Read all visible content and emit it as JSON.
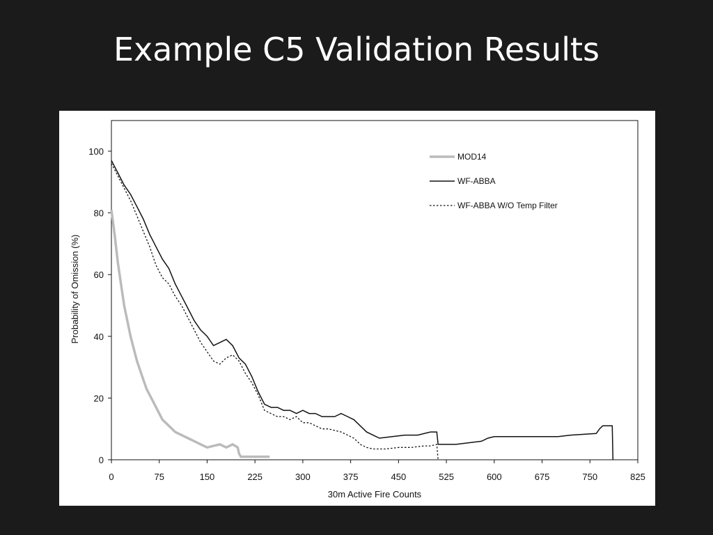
{
  "slide": {
    "title": "Example C5 Validation Results"
  },
  "chart_data": {
    "type": "line",
    "title": "",
    "xlabel": "30m Active Fire Counts",
    "ylabel": "Probability of Omission (%)",
    "xlim": [
      0,
      825
    ],
    "ylim": [
      0,
      100
    ],
    "xticks": [
      0,
      75,
      150,
      225,
      300,
      375,
      450,
      525,
      600,
      675,
      750,
      825
    ],
    "yticks": [
      0,
      20,
      40,
      60,
      80,
      100
    ],
    "grid": false,
    "legend_position": "top-right",
    "series": [
      {
        "name": "MOD14",
        "color": "#bbbbbb",
        "style": "solid-thick",
        "points": [
          [
            0,
            81
          ],
          [
            5,
            73
          ],
          [
            10,
            64
          ],
          [
            15,
            57
          ],
          [
            20,
            50
          ],
          [
            25,
            45
          ],
          [
            30,
            40
          ],
          [
            35,
            36
          ],
          [
            40,
            32
          ],
          [
            45,
            29
          ],
          [
            50,
            26
          ],
          [
            55,
            23
          ],
          [
            60,
            21
          ],
          [
            65,
            19
          ],
          [
            70,
            17
          ],
          [
            75,
            15
          ],
          [
            80,
            13
          ],
          [
            85,
            12
          ],
          [
            90,
            11
          ],
          [
            95,
            10
          ],
          [
            100,
            9
          ],
          [
            110,
            8
          ],
          [
            120,
            7
          ],
          [
            130,
            6
          ],
          [
            140,
            5
          ],
          [
            150,
            4
          ],
          [
            160,
            4.5
          ],
          [
            170,
            5
          ],
          [
            180,
            4
          ],
          [
            190,
            5
          ],
          [
            198,
            4
          ],
          [
            200,
            2
          ],
          [
            203,
            1
          ],
          [
            225,
            1
          ],
          [
            248,
            1
          ]
        ]
      },
      {
        "name": "WF-ABBA",
        "color": "#111111",
        "style": "solid",
        "points": [
          [
            0,
            97
          ],
          [
            10,
            93
          ],
          [
            20,
            89
          ],
          [
            30,
            86
          ],
          [
            40,
            82
          ],
          [
            50,
            78
          ],
          [
            60,
            73
          ],
          [
            70,
            69
          ],
          [
            80,
            65
          ],
          [
            90,
            62
          ],
          [
            100,
            57
          ],
          [
            110,
            53
          ],
          [
            120,
            49
          ],
          [
            130,
            45
          ],
          [
            140,
            42
          ],
          [
            150,
            40
          ],
          [
            160,
            37
          ],
          [
            170,
            38
          ],
          [
            180,
            39
          ],
          [
            190,
            37
          ],
          [
            200,
            33
          ],
          [
            210,
            31
          ],
          [
            220,
            27
          ],
          [
            230,
            22
          ],
          [
            240,
            18
          ],
          [
            250,
            17
          ],
          [
            260,
            17
          ],
          [
            270,
            16
          ],
          [
            280,
            16
          ],
          [
            290,
            15
          ],
          [
            300,
            16
          ],
          [
            310,
            15
          ],
          [
            320,
            15
          ],
          [
            330,
            14
          ],
          [
            340,
            14
          ],
          [
            350,
            14
          ],
          [
            360,
            15
          ],
          [
            370,
            14
          ],
          [
            380,
            13
          ],
          [
            390,
            11
          ],
          [
            400,
            9
          ],
          [
            410,
            8
          ],
          [
            420,
            7
          ],
          [
            440,
            7.5
          ],
          [
            460,
            8
          ],
          [
            480,
            8
          ],
          [
            500,
            9
          ],
          [
            510,
            9
          ],
          [
            512,
            5
          ],
          [
            540,
            5
          ],
          [
            560,
            5.5
          ],
          [
            580,
            6
          ],
          [
            590,
            7
          ],
          [
            600,
            7.5
          ],
          [
            650,
            7.5
          ],
          [
            700,
            7.5
          ],
          [
            720,
            8
          ],
          [
            760,
            8.5
          ],
          [
            765,
            10
          ],
          [
            770,
            11
          ],
          [
            785,
            11
          ],
          [
            786,
            0
          ]
        ]
      },
      {
        "name": "WF-ABBA W/O Temp Filter",
        "color": "#111111",
        "style": "dotted",
        "points": [
          [
            0,
            96
          ],
          [
            10,
            92
          ],
          [
            20,
            88
          ],
          [
            30,
            84
          ],
          [
            40,
            79
          ],
          [
            50,
            74
          ],
          [
            60,
            69
          ],
          [
            70,
            63
          ],
          [
            80,
            59
          ],
          [
            90,
            57
          ],
          [
            100,
            53
          ],
          [
            110,
            50
          ],
          [
            120,
            46
          ],
          [
            130,
            42
          ],
          [
            140,
            38
          ],
          [
            150,
            35
          ],
          [
            160,
            32
          ],
          [
            170,
            31
          ],
          [
            180,
            33
          ],
          [
            190,
            34
          ],
          [
            200,
            32
          ],
          [
            210,
            28
          ],
          [
            220,
            25
          ],
          [
            230,
            21
          ],
          [
            240,
            16
          ],
          [
            250,
            15
          ],
          [
            260,
            14
          ],
          [
            270,
            14
          ],
          [
            280,
            13
          ],
          [
            290,
            14
          ],
          [
            300,
            12
          ],
          [
            310,
            12
          ],
          [
            320,
            11
          ],
          [
            330,
            10
          ],
          [
            340,
            10
          ],
          [
            350,
            9.5
          ],
          [
            360,
            9
          ],
          [
            370,
            8
          ],
          [
            380,
            7
          ],
          [
            390,
            5
          ],
          [
            400,
            4
          ],
          [
            410,
            3.5
          ],
          [
            430,
            3.5
          ],
          [
            450,
            4
          ],
          [
            470,
            4
          ],
          [
            490,
            4.5
          ],
          [
            500,
            4.5
          ],
          [
            510,
            5
          ],
          [
            512,
            0
          ]
        ]
      }
    ]
  }
}
